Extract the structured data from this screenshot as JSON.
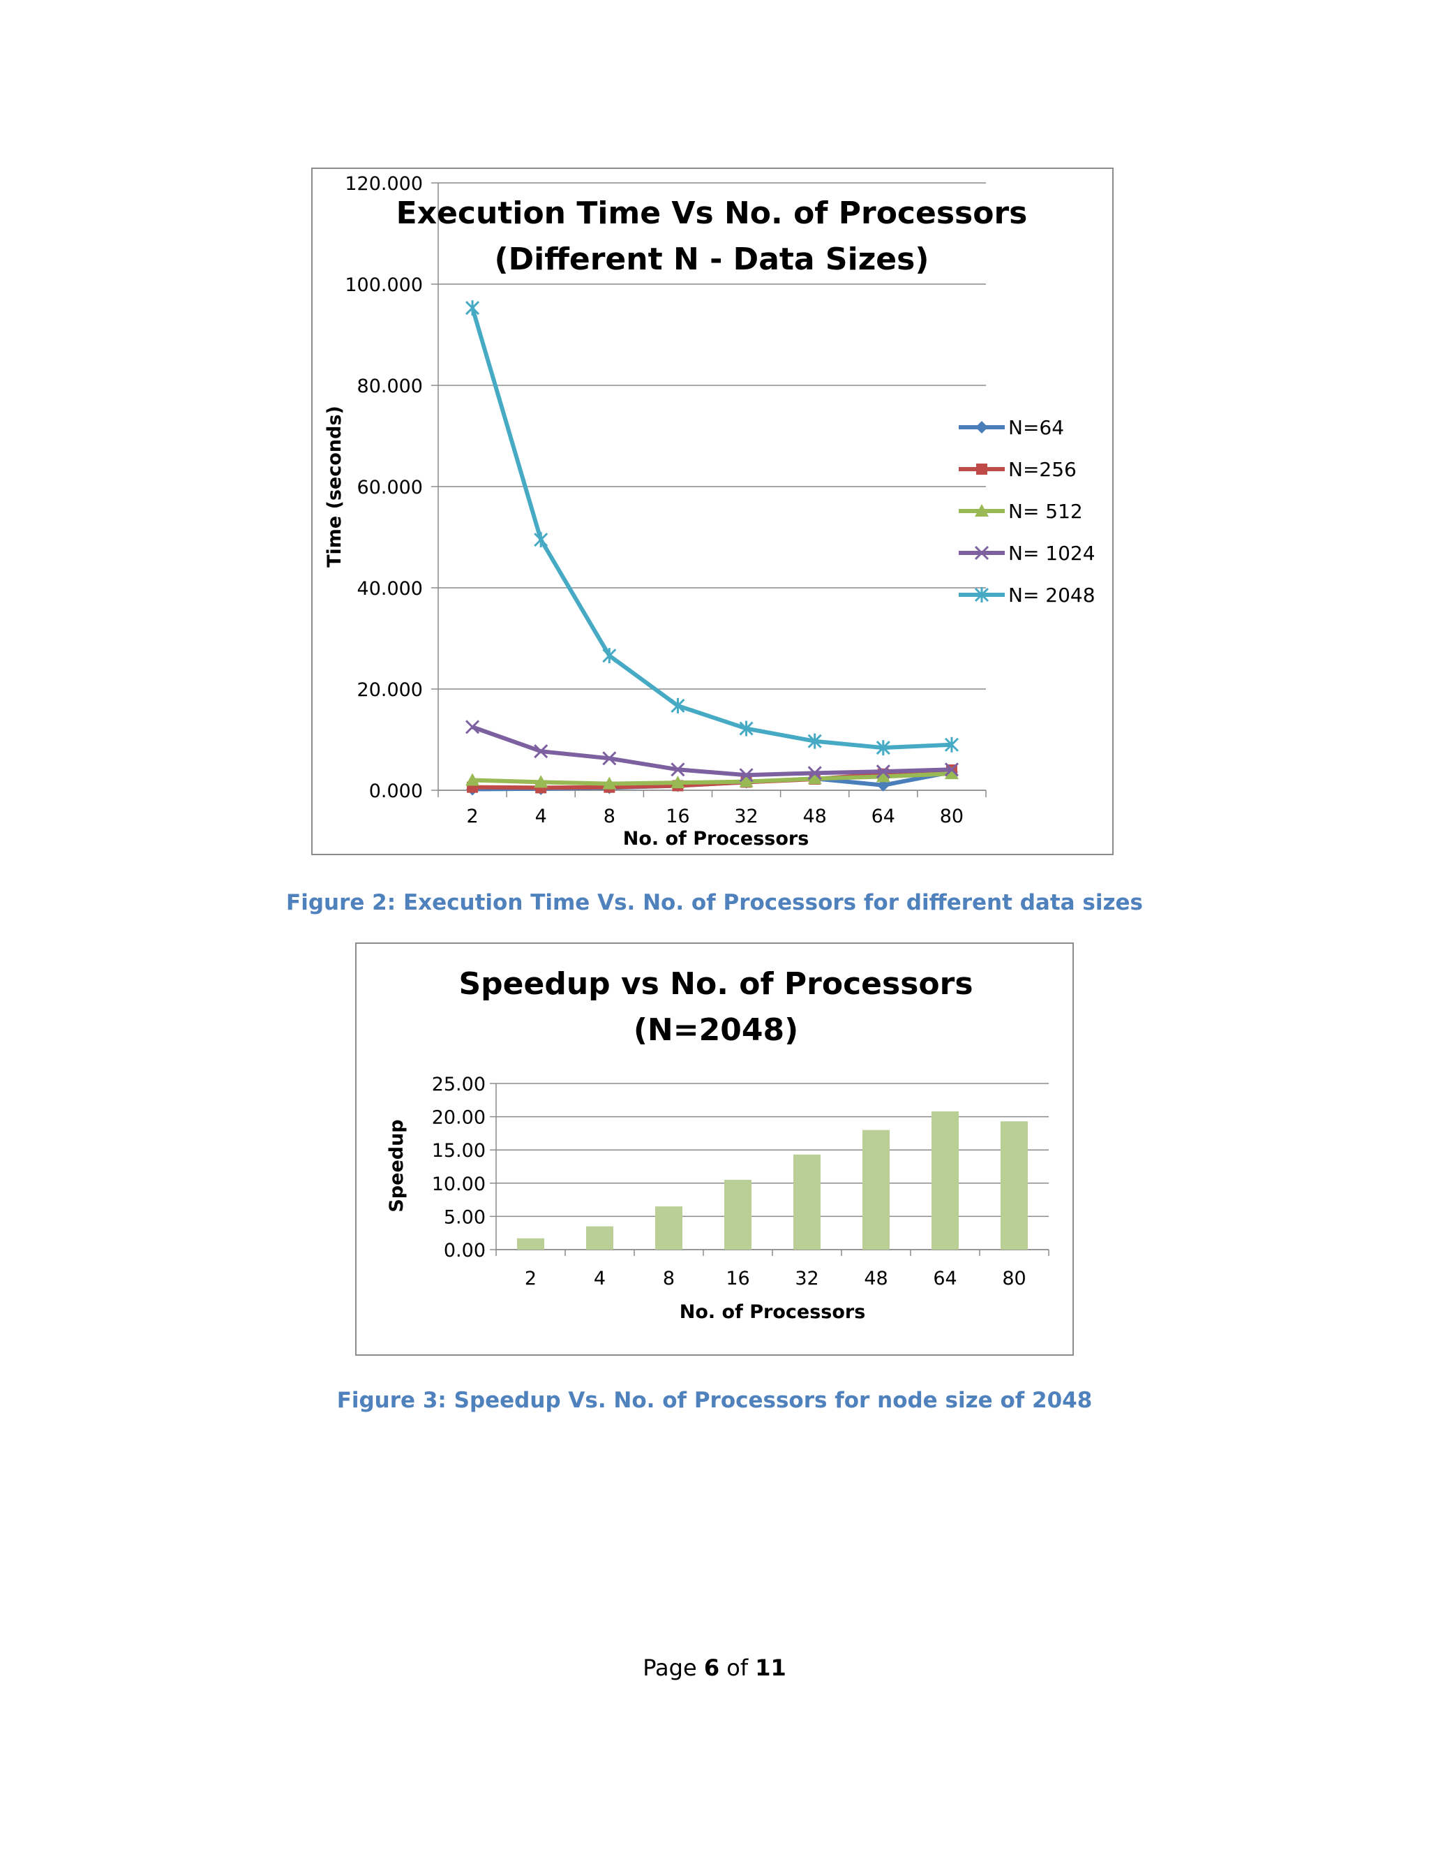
{
  "chart_data": [
    {
      "type": "line",
      "title_lines": [
        "Execution Time Vs No. of Processors",
        "(Different N - Data Sizes)"
      ],
      "xlabel": "No. of Processors",
      "ylabel": "Time (seconds)",
      "categories": [
        "2",
        "4",
        "8",
        "16",
        "32",
        "48",
        "64",
        "80"
      ],
      "ylim": [
        0,
        120
      ],
      "yticks": [
        "0.000",
        "20.000",
        "40.000",
        "60.000",
        "80.000",
        "100.000",
        "120.000"
      ],
      "grid": true,
      "legend_position": "right",
      "series": [
        {
          "name": "N=64",
          "color": "#4a7ebb",
          "marker": "diamond",
          "values": [
            0.2,
            0.3,
            0.5,
            0.9,
            1.6,
            2.3,
            1.0,
            3.6
          ]
        },
        {
          "name": "N=256",
          "color": "#be4b48",
          "marker": "square",
          "values": [
            0.6,
            0.5,
            0.6,
            0.9,
            1.6,
            2.2,
            3.2,
            4.0
          ]
        },
        {
          "name": "N= 512",
          "color": "#98b954",
          "marker": "triangle",
          "values": [
            2.0,
            1.6,
            1.3,
            1.5,
            1.7,
            2.3,
            2.7,
            3.3
          ]
        },
        {
          "name": "N= 1024",
          "color": "#7d60a0",
          "marker": "x",
          "values": [
            12.5,
            7.7,
            6.3,
            4.1,
            3.0,
            3.4,
            3.7,
            4.1
          ]
        },
        {
          "name": "N= 2048",
          "color": "#46aac5",
          "marker": "star",
          "values": [
            95.3,
            49.5,
            26.6,
            16.7,
            12.2,
            9.7,
            8.4,
            9.0
          ]
        }
      ]
    },
    {
      "type": "bar",
      "title_lines": [
        "Speedup vs No. of Processors",
        "(N=2048)"
      ],
      "xlabel": "No. of Processors",
      "ylabel": "Speedup",
      "categories": [
        "2",
        "4",
        "8",
        "16",
        "32",
        "48",
        "64",
        "80"
      ],
      "values": [
        1.7,
        3.5,
        6.5,
        10.5,
        14.3,
        18.0,
        20.8,
        19.3
      ],
      "ylim": [
        0,
        25
      ],
      "yticks": [
        "0.00",
        "5.00",
        "10.00",
        "15.00",
        "20.00",
        "25.00"
      ],
      "grid": true,
      "bar_color": "#b9cf96"
    }
  ],
  "captions": {
    "figure2": "Figure 2: Execution Time Vs. No. of Processors for different data sizes",
    "figure3": "Figure 3: Speedup Vs. No. of Processors for node size of 2048"
  },
  "footer": {
    "prefix": "Page ",
    "page": "6",
    "middle": " of ",
    "total": "11"
  }
}
